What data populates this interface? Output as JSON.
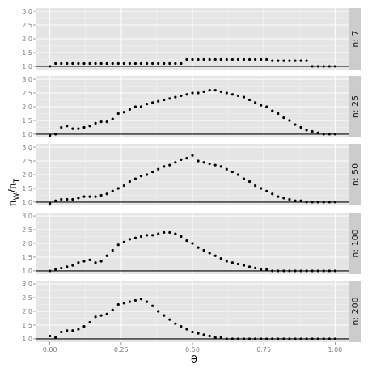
{
  "chart_data": {
    "type": "scatter",
    "xlabel": "θ",
    "ylabel": "πW/πT",
    "ylabel_parts": {
      "main": "π",
      "sub1": "W",
      "slash": "/",
      "main2": "π",
      "sub2": "T"
    },
    "xlim": [
      -0.05,
      1.05
    ],
    "ylim": [
      0.88,
      3.12
    ],
    "xticks": [
      0.0,
      0.25,
      0.5,
      0.75,
      1.0
    ],
    "xtick_labels": [
      "0.00",
      "0.25",
      "0.50",
      "0.75",
      "1.00"
    ],
    "yticks": [
      1.0,
      1.5,
      2.0,
      2.5,
      3.0
    ],
    "ytick_labels": [
      "1.0",
      "1.5",
      "2.0",
      "2.5",
      "3.0"
    ],
    "reference_line_y": 1.0,
    "grid": true,
    "x": [
      0.0,
      0.02,
      0.04,
      0.06,
      0.08,
      0.1,
      0.12,
      0.14,
      0.16,
      0.18,
      0.2,
      0.22,
      0.24,
      0.26,
      0.28,
      0.3,
      0.32,
      0.34,
      0.36,
      0.38,
      0.4,
      0.42,
      0.44,
      0.46,
      0.48,
      0.5,
      0.52,
      0.54,
      0.56,
      0.58,
      0.6,
      0.62,
      0.64,
      0.66,
      0.68,
      0.7,
      0.72,
      0.74,
      0.76,
      0.78,
      0.8,
      0.82,
      0.84,
      0.86,
      0.88,
      0.9,
      0.92,
      0.94,
      0.96,
      0.98,
      1.0
    ],
    "panels": [
      {
        "label": "n: 7",
        "values": [
          1.0,
          1.1,
          1.1,
          1.1,
          1.1,
          1.1,
          1.1,
          1.1,
          1.1,
          1.1,
          1.1,
          1.1,
          1.1,
          1.1,
          1.1,
          1.1,
          1.1,
          1.1,
          1.1,
          1.1,
          1.1,
          1.1,
          1.1,
          1.1,
          1.25,
          1.25,
          1.25,
          1.25,
          1.25,
          1.25,
          1.25,
          1.25,
          1.25,
          1.25,
          1.25,
          1.25,
          1.25,
          1.25,
          1.25,
          1.2,
          1.2,
          1.2,
          1.2,
          1.2,
          1.2,
          1.2,
          1.0,
          1.0,
          1.0,
          1.0,
          1.0
        ]
      },
      {
        "label": "n: 25",
        "values": [
          0.95,
          1.0,
          1.25,
          1.3,
          1.2,
          1.2,
          1.25,
          1.3,
          1.4,
          1.45,
          1.45,
          1.55,
          1.75,
          1.8,
          1.9,
          2.0,
          2.0,
          2.1,
          2.15,
          2.2,
          2.25,
          2.3,
          2.35,
          2.4,
          2.45,
          2.5,
          2.5,
          2.55,
          2.6,
          2.6,
          2.55,
          2.5,
          2.45,
          2.4,
          2.35,
          2.25,
          2.15,
          2.05,
          2.0,
          1.85,
          1.75,
          1.6,
          1.5,
          1.35,
          1.25,
          1.15,
          1.1,
          1.05,
          1.0,
          1.0,
          1.0
        ]
      },
      {
        "label": "n: 50",
        "values": [
          0.95,
          1.05,
          1.1,
          1.1,
          1.1,
          1.15,
          1.2,
          1.2,
          1.2,
          1.25,
          1.3,
          1.4,
          1.5,
          1.6,
          1.75,
          1.85,
          1.95,
          2.0,
          2.1,
          2.2,
          2.3,
          2.35,
          2.45,
          2.55,
          2.6,
          2.7,
          2.5,
          2.45,
          2.4,
          2.35,
          2.3,
          2.2,
          2.1,
          2.0,
          1.85,
          1.75,
          1.6,
          1.5,
          1.4,
          1.3,
          1.2,
          1.15,
          1.1,
          1.05,
          1.05,
          1.0,
          1.0,
          1.0,
          1.0,
          1.0,
          1.0
        ]
      },
      {
        "label": "n: 100",
        "values": [
          1.0,
          1.05,
          1.1,
          1.15,
          1.2,
          1.3,
          1.35,
          1.4,
          1.3,
          1.35,
          1.55,
          1.75,
          1.95,
          2.05,
          2.15,
          2.2,
          2.25,
          2.3,
          2.3,
          2.35,
          2.4,
          2.4,
          2.35,
          2.25,
          2.1,
          2.0,
          1.85,
          1.75,
          1.65,
          1.55,
          1.45,
          1.35,
          1.3,
          1.25,
          1.2,
          1.15,
          1.1,
          1.05,
          1.05,
          1.0,
          1.0,
          1.0,
          1.0,
          1.0,
          1.0,
          1.0,
          1.0,
          1.0,
          1.0,
          1.0,
          1.0
        ]
      },
      {
        "label": "n: 200",
        "values": [
          1.1,
          1.05,
          1.25,
          1.3,
          1.3,
          1.35,
          1.45,
          1.6,
          1.8,
          1.85,
          1.9,
          2.05,
          2.25,
          2.3,
          2.35,
          2.4,
          2.45,
          2.35,
          2.2,
          2.0,
          1.85,
          1.7,
          1.55,
          1.45,
          1.35,
          1.25,
          1.2,
          1.15,
          1.1,
          1.05,
          1.05,
          1.0,
          1.0,
          1.0,
          1.0,
          1.0,
          1.0,
          1.0,
          1.0,
          1.0,
          1.0,
          1.0,
          1.0,
          1.0,
          1.0,
          1.0,
          1.0,
          1.0,
          1.0,
          1.0,
          1.0
        ]
      }
    ]
  },
  "colors": {
    "panel_bg": "#e5e5e5",
    "grid": "#ffffff",
    "strip_bg": "#cccccc",
    "points": "#000000",
    "reference_line": "#000000",
    "tick_text": "#7f7f7f"
  }
}
